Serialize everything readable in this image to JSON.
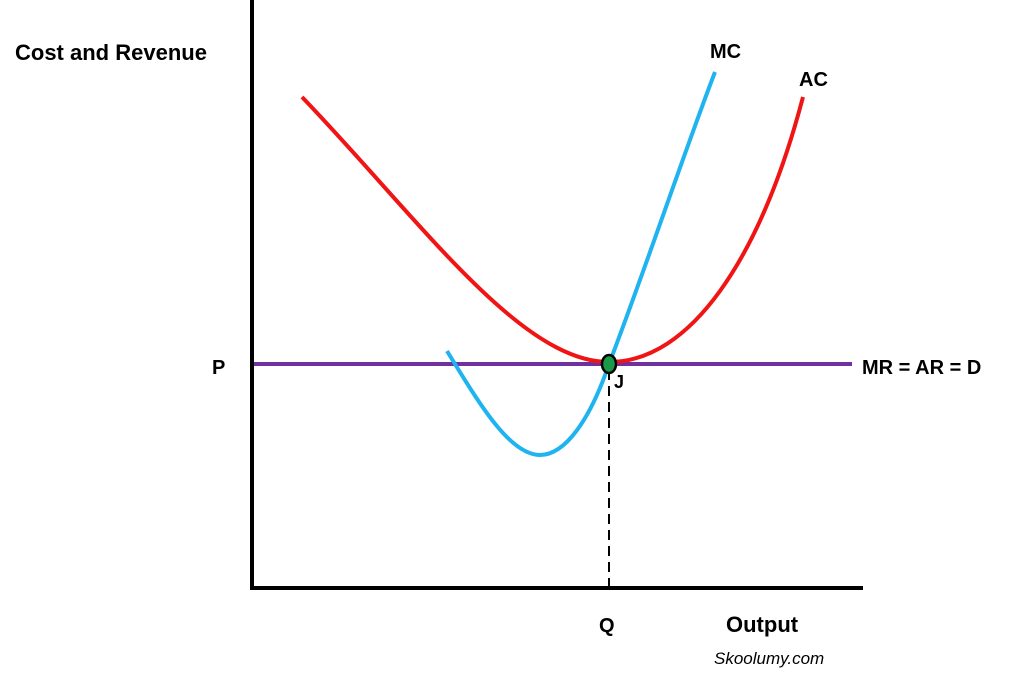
{
  "diagram": {
    "y_axis_label": "Cost and Revenue",
    "x_axis_label": "Output",
    "price_label": "P",
    "quantity_label": "Q",
    "demand_label": "MR = AR = D",
    "mc_label": "MC",
    "ac_label": "AC",
    "point_label": "J",
    "credit": "Skoolumy.com"
  },
  "colors": {
    "axes": "#000000",
    "mc_curve": "#1fb3f0",
    "ac_curve": "#f01414",
    "demand_line": "#7030a0",
    "point_fill": "#1a9a48",
    "guide_line": "#000000"
  }
}
